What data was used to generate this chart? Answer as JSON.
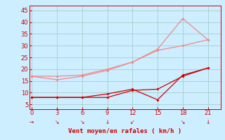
{
  "x": [
    0,
    3,
    6,
    9,
    12,
    15,
    18,
    21
  ],
  "line1": [
    17,
    15.5,
    17,
    19.5,
    23,
    28.5,
    41.5,
    32.5
  ],
  "line2": [
    17,
    17,
    17.5,
    20,
    23,
    28,
    30,
    32.5
  ],
  "line3": [
    8,
    8,
    8,
    9.5,
    11.5,
    7,
    17.5,
    20.5
  ],
  "line4": [
    8,
    8,
    8,
    8,
    11,
    11.5,
    17,
    20.5
  ],
  "color_light": "#f08888",
  "color_dark": "#cc0000",
  "bg_color": "#cceeff",
  "grid_color": "#aacccc",
  "xlabel": "Vent moyen/en rafales ( km/h )",
  "yticks": [
    5,
    10,
    15,
    20,
    25,
    30,
    35,
    40,
    45
  ],
  "xticks": [
    0,
    3,
    6,
    9,
    12,
    15,
    18,
    21
  ],
  "ylim": [
    3,
    47
  ],
  "xlim": [
    -0.3,
    22.5
  ],
  "marker_dark": "D",
  "marker_light": "D"
}
